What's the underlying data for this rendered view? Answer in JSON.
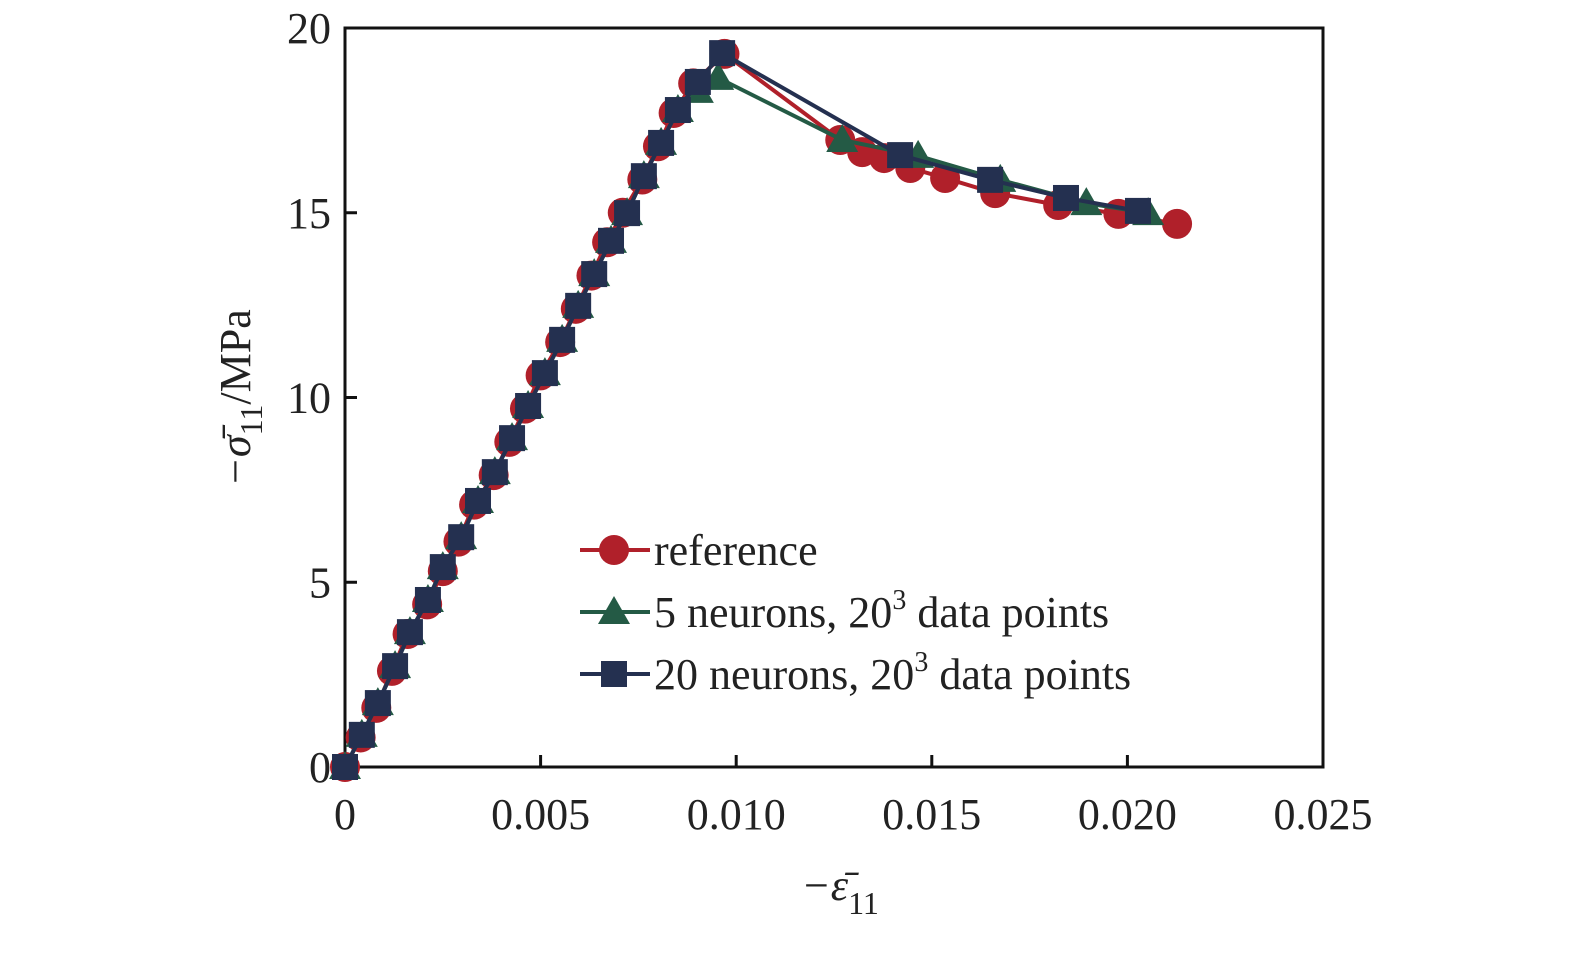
{
  "chart_data": {
    "type": "line",
    "title": "",
    "xlabel": "−ε̄",
    "xlabel_sub": "11",
    "ylabel": "−σ̄",
    "ylabel_sub": "11",
    "ylabel_unit": "/MPa",
    "xlim": [
      0,
      0.025
    ],
    "ylim": [
      0,
      20
    ],
    "xticks": [
      "0",
      "0.005",
      "0.010",
      "0.015",
      "0.020",
      "0.025"
    ],
    "xtick_values": [
      0,
      0.005,
      0.01,
      0.015,
      0.02,
      0.025
    ],
    "yticks": [
      "0",
      "5",
      "10",
      "15",
      "20"
    ],
    "ytick_values": [
      0,
      5,
      10,
      15,
      20
    ],
    "grid": false,
    "legend_placement": "center-bottom inside",
    "series": [
      {
        "name": "reference",
        "marker": "circle",
        "color": "#b0202a",
        "x": [
          0,
          0.0004,
          0.0008,
          0.0012,
          0.0016,
          0.0021,
          0.0025,
          0.0029,
          0.0033,
          0.0038,
          0.0042,
          0.0046,
          0.005,
          0.0055,
          0.0059,
          0.0063,
          0.0067,
          0.0071,
          0.0076,
          0.008,
          0.0084,
          0.0089,
          0.0097,
          0.01266,
          0.01322,
          0.01378,
          0.01445,
          0.01534,
          0.01662,
          0.01823,
          0.01977,
          0.02127
        ],
        "y": [
          0,
          0.8,
          1.6,
          2.6,
          3.6,
          4.4,
          5.3,
          6.1,
          7.1,
          7.9,
          8.8,
          9.7,
          10.6,
          11.5,
          12.4,
          13.3,
          14.2,
          15.0,
          15.9,
          16.8,
          17.7,
          18.5,
          19.3,
          16.97,
          16.64,
          16.48,
          16.21,
          15.94,
          15.53,
          15.21,
          14.97,
          14.7
        ]
      },
      {
        "name": "5 neurons, 20³ data points",
        "label_main": "5 neurons, 20",
        "label_sup": "3",
        "label_tail": " data points",
        "marker": "triangle",
        "color": "#245a45",
        "x": [
          0,
          0.00043,
          0.00084,
          0.00128,
          0.00166,
          0.00212,
          0.0025,
          0.00297,
          0.0034,
          0.00383,
          0.00427,
          0.00468,
          0.00511,
          0.00555,
          0.00596,
          0.00637,
          0.0068,
          0.00721,
          0.00764,
          0.00808,
          0.00851,
          0.00902,
          0.00954,
          0.01271,
          0.01465,
          0.01675,
          0.01895,
          0.02053
        ],
        "y": [
          0,
          0.87,
          1.73,
          2.73,
          3.65,
          4.52,
          5.41,
          6.22,
          7.2,
          7.98,
          8.9,
          9.77,
          10.66,
          11.56,
          12.48,
          13.34,
          14.24,
          14.99,
          15.99,
          16.89,
          17.78,
          18.3,
          18.65,
          16.97,
          16.54,
          15.89,
          15.26,
          14.99
        ]
      },
      {
        "name": "20 neurons, 20³ data points",
        "label_main": "20 neurons, 20",
        "label_sup": "3",
        "label_tail": " data points",
        "marker": "square",
        "color": "#243050",
        "x": [
          0,
          0.00043,
          0.00084,
          0.00128,
          0.00166,
          0.00212,
          0.0025,
          0.00297,
          0.0034,
          0.00383,
          0.00427,
          0.00468,
          0.00511,
          0.00555,
          0.00596,
          0.00637,
          0.0068,
          0.00721,
          0.00764,
          0.00808,
          0.00851,
          0.00902,
          0.00964,
          0.01419,
          0.01649,
          0.01843,
          0.02027
        ],
        "y": [
          0,
          0.87,
          1.73,
          2.73,
          3.65,
          4.52,
          5.41,
          6.22,
          7.2,
          7.98,
          8.9,
          9.77,
          10.66,
          11.56,
          12.48,
          13.34,
          14.24,
          14.99,
          15.99,
          16.89,
          17.78,
          18.54,
          19.32,
          16.56,
          15.89,
          15.4,
          15.05
        ]
      }
    ]
  }
}
